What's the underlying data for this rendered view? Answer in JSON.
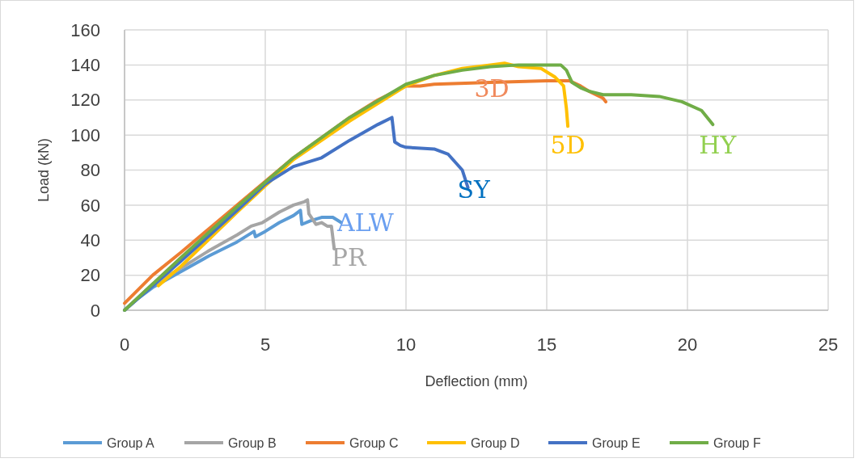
{
  "chart_data": {
    "type": "line",
    "xlabel": "Deflection (mm)",
    "ylabel": "Load (kN)",
    "xlim": [
      0,
      25
    ],
    "xticks": [
      0,
      5,
      10,
      15,
      20,
      25
    ],
    "ylim": [
      0,
      160
    ],
    "yticks": [
      0,
      20,
      40,
      60,
      80,
      100,
      120,
      140,
      160
    ],
    "grid": true,
    "legend": "bottom",
    "line_style": "solid",
    "marker": "none",
    "series": [
      {
        "name": "Group A",
        "color": "#5b9bd5",
        "x": [
          0,
          0.5,
          1,
          2,
          3,
          4,
          4.6,
          4.65,
          5,
          5.5,
          6,
          6.25,
          6.3,
          6.6,
          7,
          7.4,
          7.7
        ],
        "values": [
          0,
          7,
          13,
          22,
          31,
          39,
          45,
          42,
          45,
          50,
          54,
          57,
          49,
          51,
          53,
          53,
          50
        ]
      },
      {
        "name": "Group B",
        "color": "#a5a5a5",
        "x": [
          0,
          1,
          2,
          3,
          4,
          4.5,
          4.9,
          5.5,
          6,
          6.4,
          6.5,
          6.55,
          6.8,
          7,
          7.2,
          7.35,
          7.45
        ],
        "values": [
          0,
          15,
          24,
          34,
          43,
          48,
          50,
          56,
          60,
          62,
          63,
          55,
          49,
          50,
          48,
          48,
          35
        ]
      },
      {
        "name": "Group C",
        "color": "#ed7d31",
        "x": [
          0,
          1,
          2,
          4,
          6,
          8,
          9,
          10,
          10.5,
          11,
          13,
          15,
          15.8,
          16.2,
          16.5,
          17,
          17.1
        ],
        "values": [
          4,
          20,
          33,
          60,
          87,
          110,
          120,
          128,
          128,
          129,
          130,
          131,
          131,
          128,
          125,
          121,
          119
        ]
      },
      {
        "name": "Group D",
        "color": "#ffc000",
        "x": [
          1.2,
          2,
          4,
          6,
          8,
          9,
          10,
          11,
          12,
          13,
          13.5,
          14,
          14.8,
          15.3,
          15.6,
          15.7,
          15.75
        ],
        "values": [
          14,
          25,
          56,
          86,
          108,
          118,
          128,
          134,
          138,
          140,
          141,
          139,
          138,
          133,
          128,
          115,
          105
        ]
      },
      {
        "name": "Group E",
        "color": "#4472c4",
        "x": [
          0,
          2,
          4,
          5,
          6,
          7,
          8,
          9,
          9.5,
          9.6,
          9.8,
          10,
          11,
          11.5,
          12,
          12.2
        ],
        "values": [
          0,
          28,
          57,
          72,
          82,
          87,
          97,
          106,
          110,
          96,
          94,
          93,
          92,
          89,
          80,
          70
        ]
      },
      {
        "name": "Group F",
        "color": "#70ad47",
        "x": [
          0,
          2,
          4,
          6,
          8,
          10,
          11,
          12,
          13,
          14,
          15,
          15.5,
          15.7,
          15.9,
          16.2,
          16.5,
          17,
          18,
          19,
          19.8,
          20.5,
          20.9
        ],
        "values": [
          0,
          30,
          59,
          87,
          110,
          129,
          134,
          137,
          139,
          140,
          140,
          140,
          137,
          130,
          127,
          125,
          123,
          123,
          122,
          119,
          114,
          106
        ]
      }
    ],
    "annotations": [
      "ALW",
      "PR",
      "3D",
      "5D",
      "SY",
      "HY"
    ]
  }
}
